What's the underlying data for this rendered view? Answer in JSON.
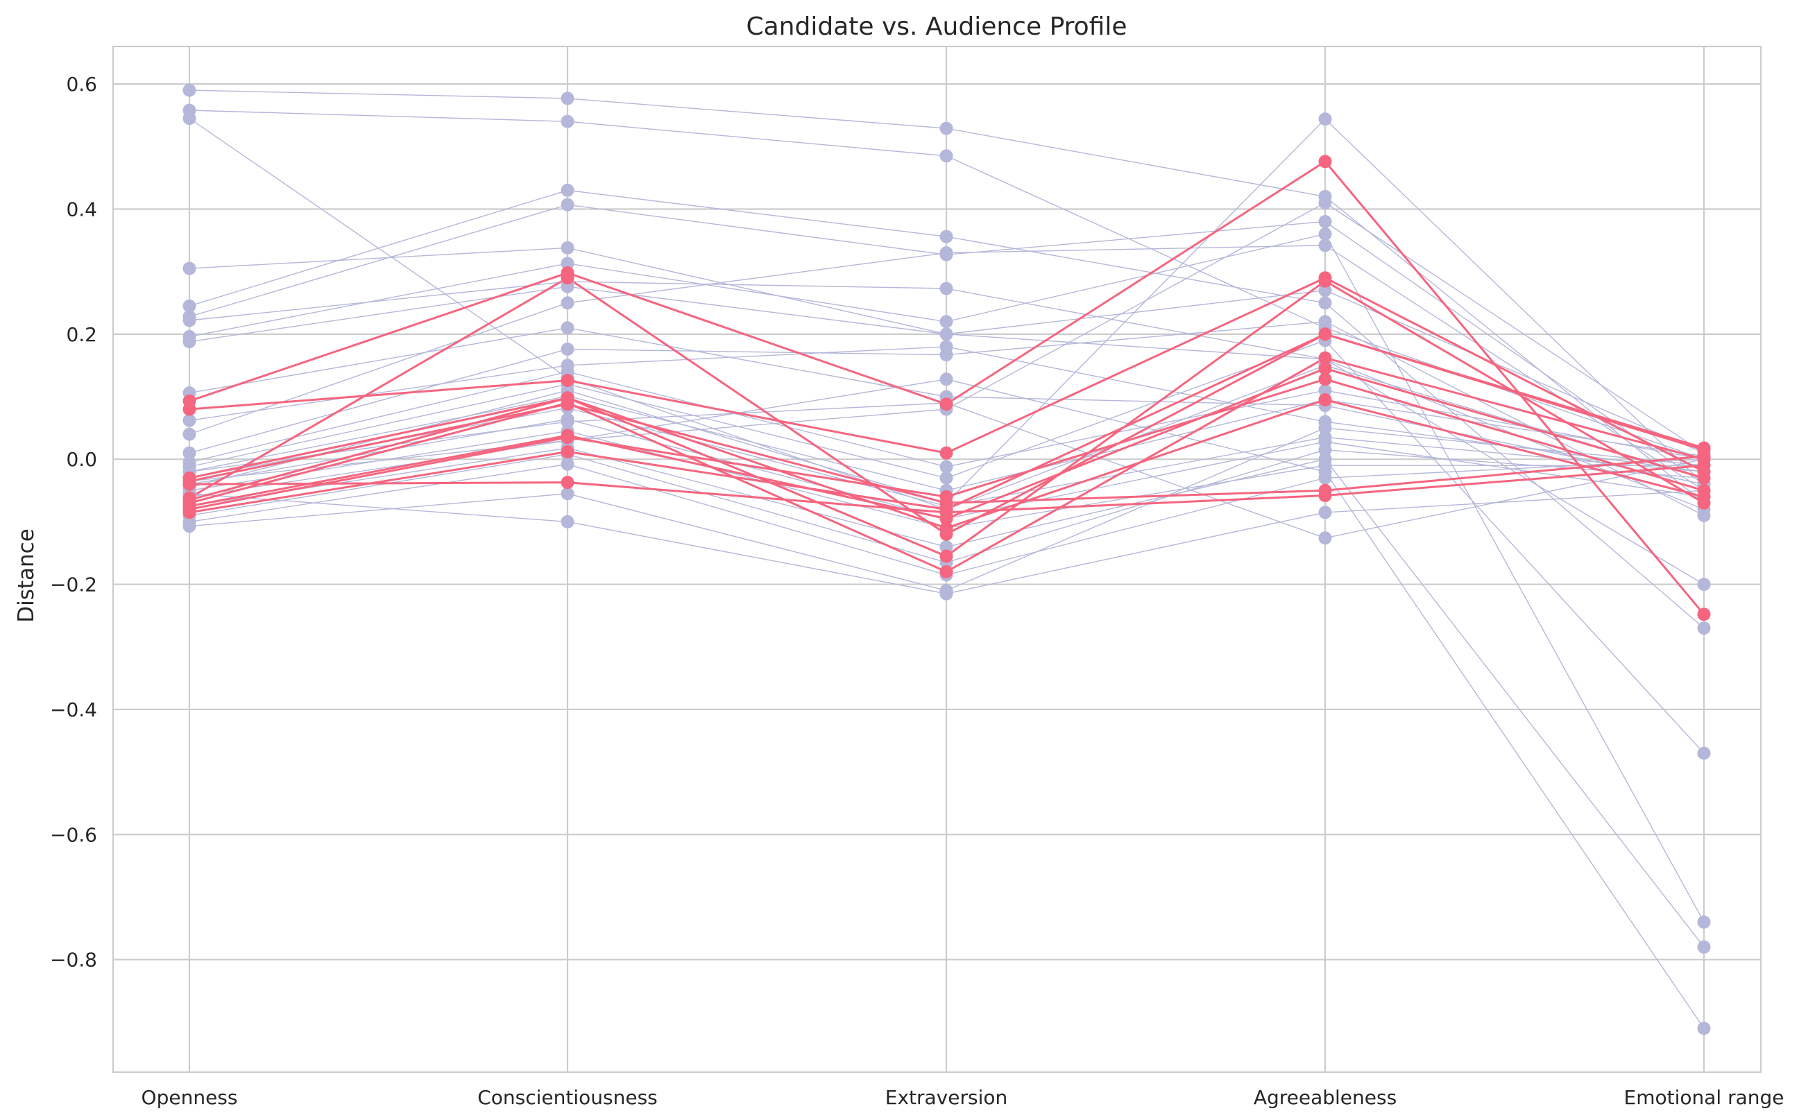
{
  "chart_data": {
    "type": "line",
    "title": "Candidate vs. Audience Profile",
    "xlabel": "",
    "ylabel": "Distance",
    "categories": [
      "Openness",
      "Conscientiousness",
      "Extraversion",
      "Agreeableness",
      "Emotional range"
    ],
    "ylim": [
      -0.98,
      0.66
    ],
    "yticks": [
      0.6,
      0.4,
      0.2,
      0.0,
      -0.2,
      -0.4,
      -0.6,
      -0.8
    ],
    "ytick_labels": [
      "0.6",
      "0.4",
      "0.2",
      "0.0",
      "−0.2",
      "−0.4",
      "−0.6",
      "−0.8"
    ],
    "grid": true,
    "legend": "none",
    "colors": {
      "audience": "#b4b7d9",
      "candidate": "#f5657f"
    },
    "series": [
      {
        "group": "audience",
        "values": [
          0.59,
          0.577,
          0.529,
          0.42,
          -0.07
        ]
      },
      {
        "group": "audience",
        "values": [
          0.558,
          0.54,
          0.485,
          0.21,
          0.0
        ]
      },
      {
        "group": "audience",
        "values": [
          0.545,
          0.13,
          -0.08,
          0.15,
          -0.03
        ]
      },
      {
        "group": "audience",
        "values": [
          0.305,
          0.338,
          0.2,
          0.16,
          -0.08
        ]
      },
      {
        "group": "audience",
        "values": [
          0.245,
          0.43,
          0.356,
          0.25,
          -0.27
        ]
      },
      {
        "group": "audience",
        "values": [
          0.228,
          0.407,
          0.327,
          0.38,
          -0.04
        ]
      },
      {
        "group": "audience",
        "values": [
          0.222,
          0.284,
          0.273,
          0.16,
          -0.2
        ]
      },
      {
        "group": "audience",
        "values": [
          0.196,
          0.313,
          0.22,
          0.36,
          -0.74
        ]
      },
      {
        "group": "audience",
        "values": [
          0.188,
          0.276,
          0.2,
          0.27,
          0.01
        ]
      },
      {
        "group": "audience",
        "values": [
          0.106,
          0.21,
          0.1,
          0.086,
          -0.04
        ]
      },
      {
        "group": "audience",
        "values": [
          0.062,
          0.15,
          0.18,
          0.06,
          -0.02
        ]
      },
      {
        "group": "audience",
        "values": [
          0.04,
          0.25,
          0.33,
          0.342,
          -0.05
        ]
      },
      {
        "group": "audience",
        "values": [
          0.01,
          0.176,
          0.167,
          0.22,
          -0.09
        ]
      },
      {
        "group": "audience",
        "values": [
          -0.005,
          0.14,
          -0.012,
          0.11,
          0.0
        ]
      },
      {
        "group": "audience",
        "values": [
          -0.012,
          0.12,
          -0.03,
          0.19,
          -0.47
        ]
      },
      {
        "group": "audience",
        "values": [
          -0.02,
          0.101,
          -0.05,
          0.095,
          0.005
        ]
      },
      {
        "group": "audience",
        "values": [
          -0.03,
          0.082,
          -0.075,
          0.035,
          -0.02
        ]
      },
      {
        "group": "audience",
        "values": [
          -0.04,
          0.064,
          -0.095,
          0.028,
          -0.06
        ]
      },
      {
        "group": "audience",
        "values": [
          -0.05,
          0.045,
          -0.11,
          -0.01,
          -0.01
        ]
      },
      {
        "group": "audience",
        "values": [
          -0.06,
          0.03,
          0.128,
          -0.02,
          -0.91
        ]
      },
      {
        "group": "audience",
        "values": [
          -0.075,
          0.018,
          -0.14,
          0.0,
          -0.78
        ]
      },
      {
        "group": "audience",
        "values": [
          -0.09,
          0.008,
          -0.165,
          0.015,
          -0.03
        ]
      },
      {
        "group": "audience",
        "values": [
          -0.1,
          -0.008,
          -0.185,
          -0.03,
          0.0
        ]
      },
      {
        "group": "audience",
        "values": [
          -0.107,
          -0.055,
          -0.21,
          0.05,
          -0.01
        ]
      },
      {
        "group": "audience",
        "values": [
          -0.055,
          -0.1,
          -0.215,
          -0.085,
          -0.05
        ]
      },
      {
        "group": "audience",
        "values": [
          -0.035,
          0.03,
          0.08,
          0.41,
          0.01
        ]
      },
      {
        "group": "audience",
        "values": [
          -0.02,
          0.06,
          0.09,
          -0.126,
          0.0
        ]
      },
      {
        "group": "audience",
        "values": [
          -0.045,
          0.11,
          -0.07,
          0.544,
          -0.04
        ]
      },
      {
        "group": "candidate",
        "values": [
          0.093,
          0.298,
          0.088,
          0.476,
          -0.248
        ]
      },
      {
        "group": "candidate",
        "values": [
          0.08,
          0.126,
          0.01,
          0.29,
          -0.02
        ]
      },
      {
        "group": "candidate",
        "values": [
          -0.062,
          0.29,
          -0.12,
          0.2,
          0.018
        ]
      },
      {
        "group": "candidate",
        "values": [
          -0.065,
          0.098,
          -0.155,
          0.285,
          -0.07
        ]
      },
      {
        "group": "candidate",
        "values": [
          -0.07,
          0.09,
          -0.18,
          0.162,
          0.0
        ]
      },
      {
        "group": "candidate",
        "values": [
          -0.075,
          0.038,
          -0.095,
          0.145,
          -0.03
        ]
      },
      {
        "group": "candidate",
        "values": [
          -0.08,
          0.035,
          -0.06,
          0.128,
          -0.05
        ]
      },
      {
        "group": "candidate",
        "values": [
          -0.085,
          0.012,
          -0.08,
          0.2,
          0.015
        ]
      },
      {
        "group": "candidate",
        "values": [
          -0.04,
          -0.037,
          -0.085,
          -0.058,
          -0.01
        ]
      },
      {
        "group": "candidate",
        "values": [
          -0.035,
          0.088,
          -0.07,
          -0.05,
          0.005
        ]
      },
      {
        "group": "candidate",
        "values": [
          -0.03,
          0.098,
          -0.11,
          0.095,
          -0.06
        ]
      }
    ]
  }
}
